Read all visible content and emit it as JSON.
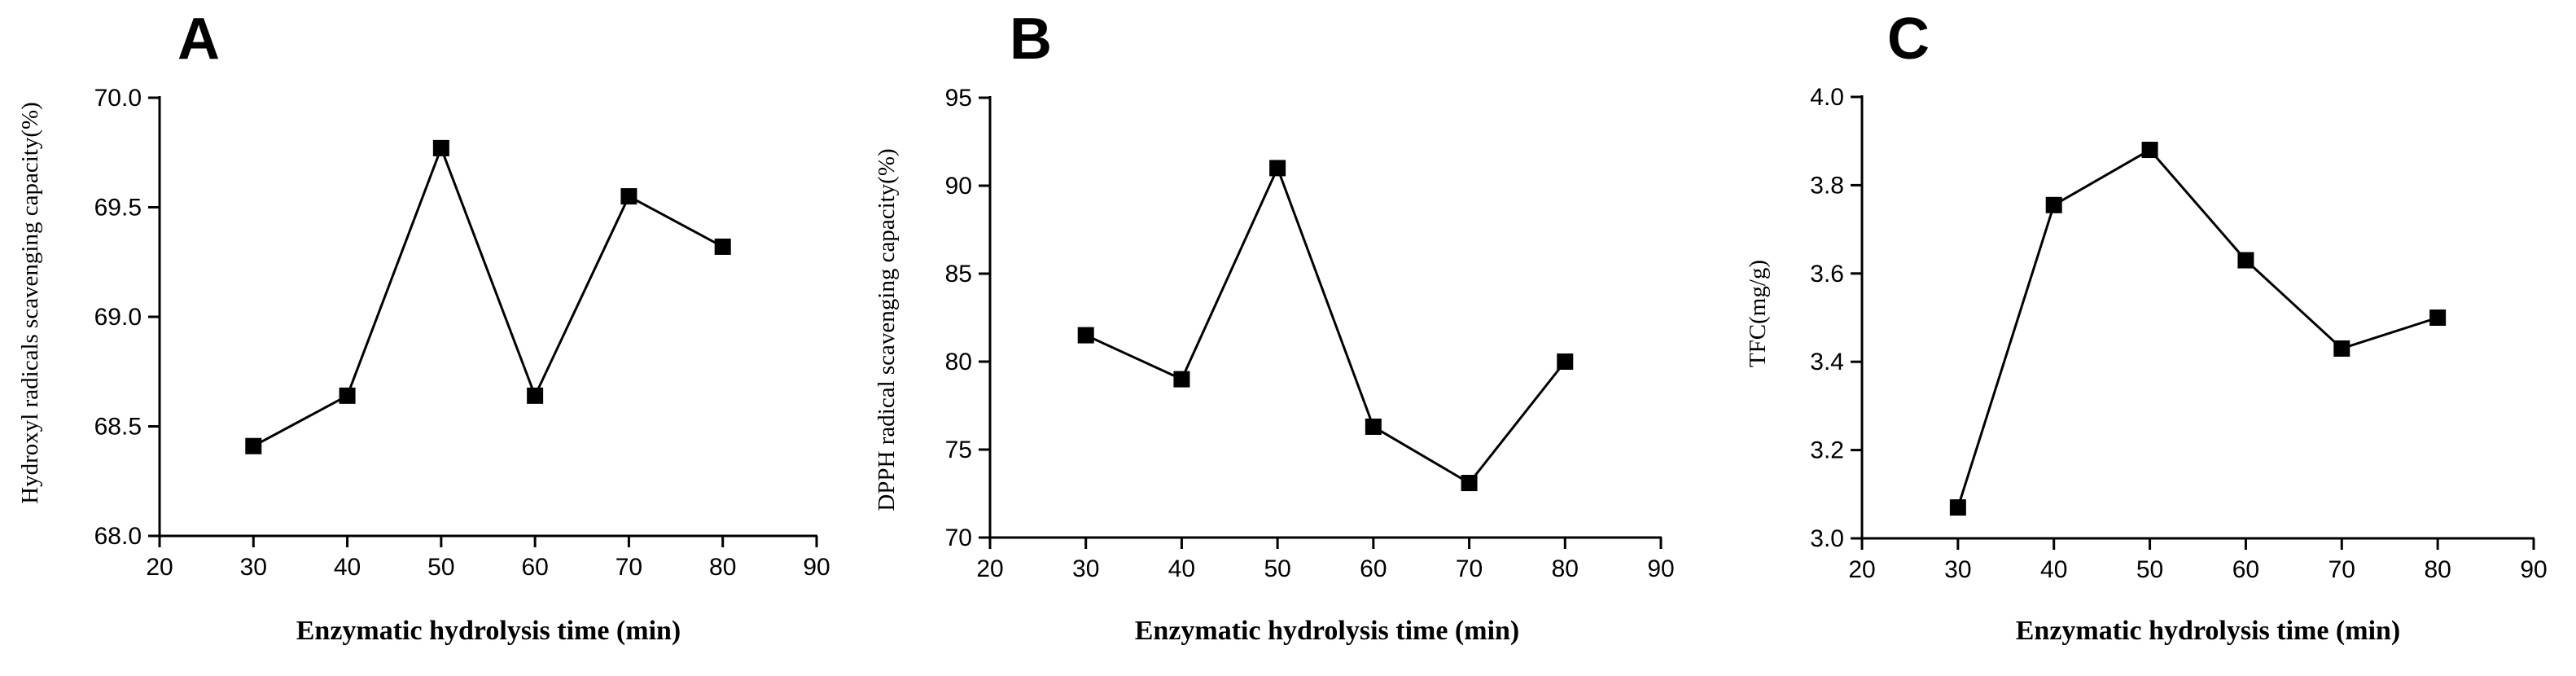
{
  "chart_data": [
    {
      "type": "line",
      "panel_label": "A",
      "xlabel": "Enzymatic hydrolysis time (min)",
      "ylabel": "Hydroxyl radicals scavenging capacity(%)",
      "xlim": [
        20,
        90
      ],
      "ylim": [
        68.0,
        70.0
      ],
      "xticks": [
        "20",
        "30",
        "40",
        "50",
        "60",
        "70",
        "80",
        "90"
      ],
      "yticks": [
        "68.0",
        "68.5",
        "69.0",
        "69.5",
        "70.0"
      ],
      "x": [
        30,
        40,
        50,
        60,
        70,
        80
      ],
      "y": [
        68.41,
        68.64,
        69.77,
        68.64,
        69.55,
        69.32
      ],
      "marker": "square",
      "color": "#000000",
      "grid": false
    },
    {
      "type": "line",
      "panel_label": "B",
      "xlabel": "Enzymatic hydrolysis time (min)",
      "ylabel": "DPPH radical scavenging capacity(%)",
      "xlim": [
        20,
        90
      ],
      "ylim": [
        70,
        95
      ],
      "xticks": [
        "20",
        "30",
        "40",
        "50",
        "60",
        "70",
        "80",
        "90"
      ],
      "yticks": [
        "70",
        "75",
        "80",
        "85",
        "90",
        "95"
      ],
      "x": [
        30,
        40,
        50,
        60,
        70,
        80
      ],
      "y": [
        81.5,
        79.0,
        91.0,
        76.3,
        73.1,
        80.0
      ],
      "marker": "square",
      "color": "#000000",
      "grid": false
    },
    {
      "type": "line",
      "panel_label": "C",
      "xlabel": "Enzymatic hydrolysis time (min)",
      "ylabel": "TFC(mg/g)",
      "xlim": [
        20,
        90
      ],
      "ylim": [
        3.0,
        4.0
      ],
      "xticks": [
        "20",
        "30",
        "40",
        "50",
        "60",
        "70",
        "80",
        "90"
      ],
      "yticks": [
        "3.0",
        "3.2",
        "3.4",
        "3.6",
        "3.8",
        "4.0"
      ],
      "x": [
        30,
        40,
        50,
        60,
        70,
        80
      ],
      "y": [
        3.07,
        3.755,
        3.88,
        3.63,
        3.43,
        3.5
      ],
      "marker": "square",
      "color": "#000000",
      "grid": false
    }
  ]
}
